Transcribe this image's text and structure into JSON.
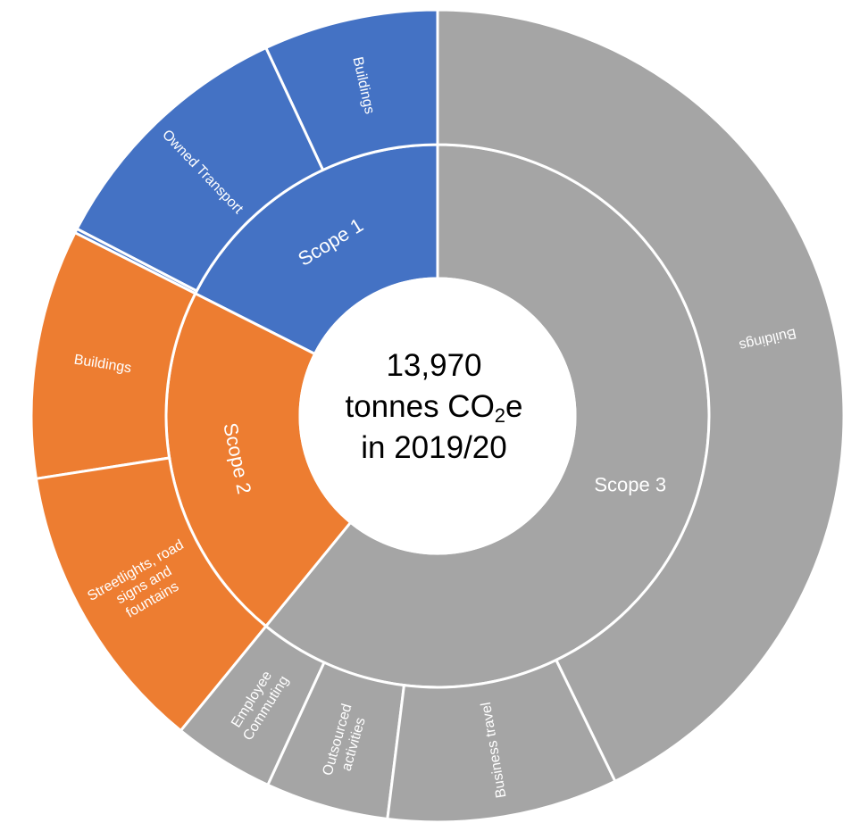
{
  "chart_data": {
    "type": "sunburst",
    "center": {
      "line1": "13,970",
      "line2_prefix": "tonnes CO",
      "line2_sub": "2",
      "line2_suffix": "e",
      "line3": "in 2019/20"
    },
    "series": [
      {
        "name": "Scope 1",
        "color": "#4472C4",
        "children": [
          {
            "name": "Buildings",
            "value": 0.0694
          },
          {
            "name": "Owned Transport",
            "value": 0.1044
          },
          {
            "name": "",
            "value": 0.0017
          }
        ]
      },
      {
        "name": "Scope 2",
        "color": "#ED7D31",
        "children": [
          {
            "name": "Buildings",
            "value": 0.0992
          },
          {
            "name": "Streetlights, road signs and fountains",
            "value": 0.1164
          }
        ]
      },
      {
        "name": "Scope 3",
        "color": "#A5A5A5",
        "children": [
          {
            "name": "Employee Commuting",
            "value": 0.0403
          },
          {
            "name": "Outsourced activities",
            "value": 0.0489
          },
          {
            "name": "Business travel",
            "value": 0.0917
          },
          {
            "name": "Buildings",
            "value": 0.428
          }
        ]
      }
    ]
  }
}
